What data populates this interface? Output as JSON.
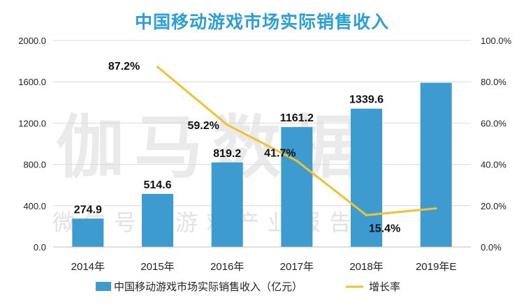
{
  "page": {
    "title": "中国移动游戏市场实际销售收入",
    "watermark_main": "伽马数据",
    "watermark_sub": "微信号：游戏产业报告"
  },
  "chart_data": {
    "type": "bar",
    "title": "中国移动游戏市场实际销售收入",
    "categories": [
      "2014年",
      "2015年",
      "2016年",
      "2017年",
      "2018年",
      "2019年E"
    ],
    "series": [
      {
        "name": "中国移动游戏市场实际销售收入（亿元）",
        "type": "bar",
        "axis": "left",
        "color": "#3d9bd0",
        "values": [
          274.9,
          514.6,
          819.2,
          1161.2,
          1339.6,
          1590
        ],
        "labels": [
          "274.9",
          "514.6",
          "819.2",
          "1161.2",
          "1339.6",
          ""
        ]
      },
      {
        "name": "增长率",
        "type": "line",
        "axis": "right",
        "color": "#f2c12e",
        "values": [
          null,
          87.2,
          59.2,
          41.7,
          15.4,
          18.7
        ],
        "labels": [
          "",
          "87.2%",
          "59.2%",
          "41.7%",
          "15.4%",
          ""
        ]
      }
    ],
    "y_left": {
      "ylim": [
        0,
        2000
      ],
      "ticks": [
        "0.0",
        "400.0",
        "800.0",
        "1200.0",
        "1600.0",
        "2000.0"
      ]
    },
    "y_right": {
      "ylim": [
        0,
        100
      ],
      "ticks": [
        "0.0%",
        "20.0%",
        "40.0%",
        "60.0%",
        "80.0%",
        "100.0%"
      ]
    },
    "grid": true,
    "legend_position": "bottom"
  }
}
